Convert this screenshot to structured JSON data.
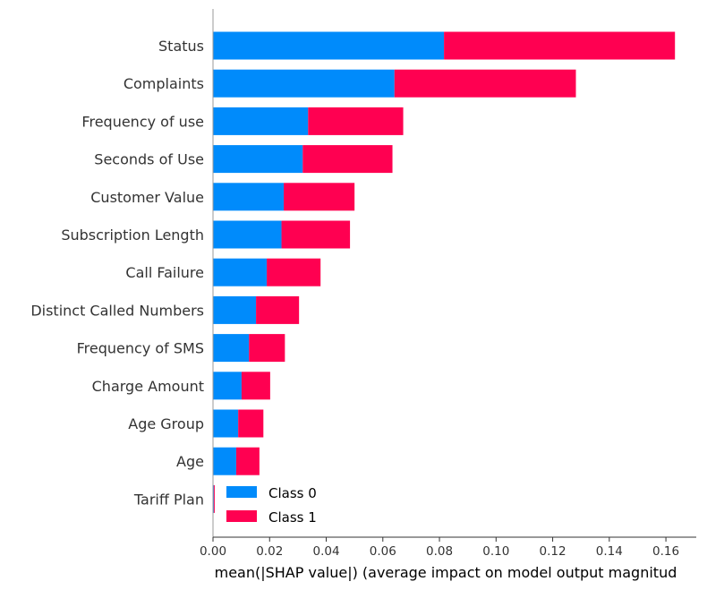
{
  "chart_data": {
    "type": "bar",
    "orientation": "horizontal",
    "stacked": true,
    "categories": [
      "Status",
      "Complaints",
      "Frequency of use",
      "Seconds of Use",
      "Customer Value",
      "Subscription Length",
      "Call Failure",
      "Distinct Called Numbers",
      "Frequency of SMS",
      "Charge Amount",
      "Age Group",
      "Age",
      "Tariff Plan"
    ],
    "series": [
      {
        "name": "Class 0",
        "color": "#008bfb",
        "values": [
          0.0816,
          0.0641,
          0.0336,
          0.0317,
          0.025,
          0.0242,
          0.019,
          0.0152,
          0.0127,
          0.0101,
          0.0089,
          0.0082,
          0.0003
        ]
      },
      {
        "name": "Class 1",
        "color": "#ff0051",
        "values": [
          0.0816,
          0.0641,
          0.0336,
          0.0317,
          0.025,
          0.0242,
          0.019,
          0.0152,
          0.0127,
          0.0101,
          0.0089,
          0.0082,
          0.0003
        ]
      }
    ],
    "xlabel": "mean(|SHAP value|) (average impact on model output magnitud",
    "ylabel": "",
    "xlim": [
      0,
      0.171
    ],
    "xticks": [
      "0.00",
      "0.02",
      "0.04",
      "0.06",
      "0.08",
      "0.10",
      "0.12",
      "0.14",
      "0.16"
    ],
    "grid": false,
    "legend": "lower-right"
  }
}
